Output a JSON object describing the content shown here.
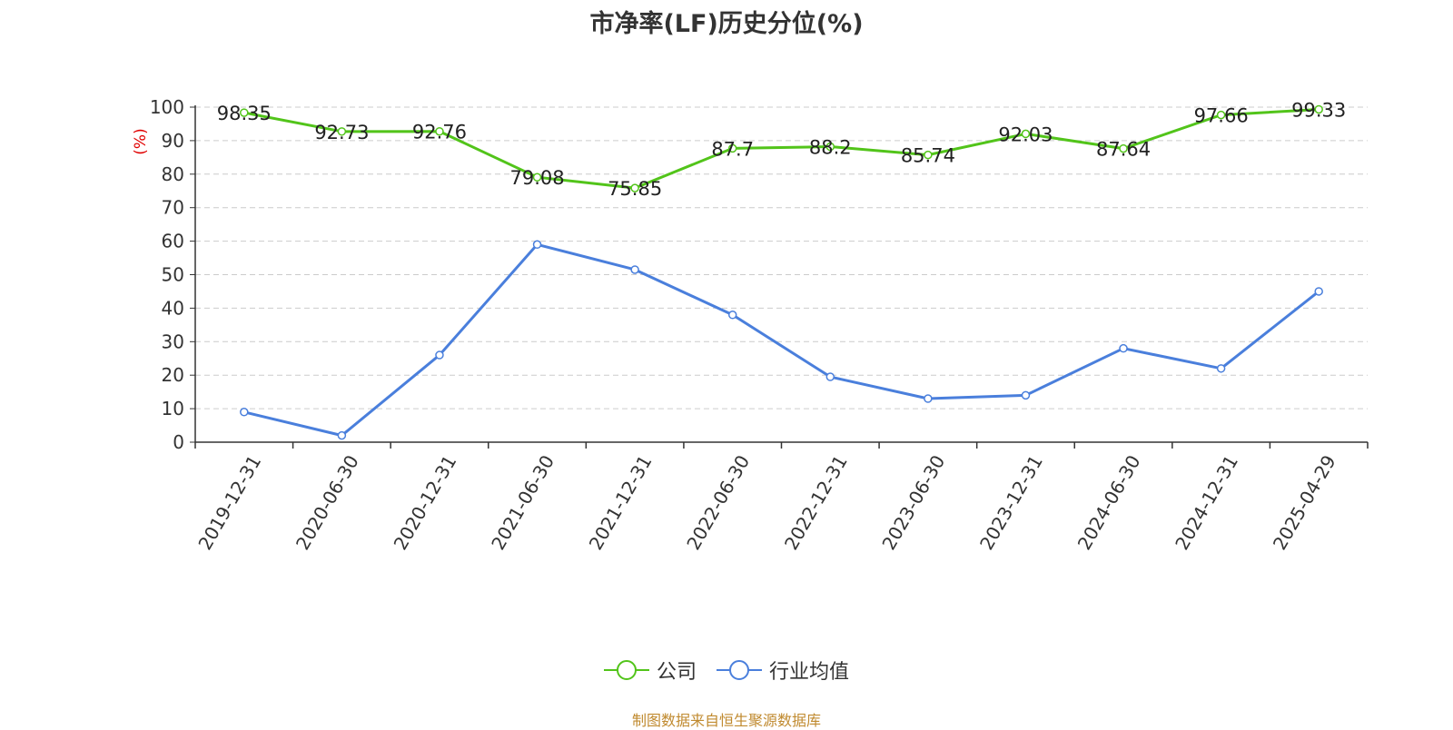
{
  "chart_data": {
    "type": "line",
    "title": "市净率(LF)历史分位(%)",
    "ylabel": "(%)",
    "xlabel": "",
    "ylim": [
      0,
      100
    ],
    "yticks": [
      0,
      10,
      20,
      30,
      40,
      50,
      60,
      70,
      80,
      90,
      100
    ],
    "grid": true,
    "legend_position": "bottom",
    "categories": [
      "2019-12-31",
      "2020-06-30",
      "2020-12-31",
      "2021-06-30",
      "2021-12-31",
      "2022-06-30",
      "2022-12-31",
      "2023-06-30",
      "2023-12-31",
      "2024-06-30",
      "2024-12-31",
      "2025-04-29"
    ],
    "series": [
      {
        "name": "公司",
        "color": "#52c41a",
        "values": [
          98.35,
          92.73,
          92.76,
          79.08,
          75.85,
          87.7,
          88.2,
          85.74,
          92.03,
          87.64,
          97.66,
          99.33
        ],
        "labels": [
          "98.35",
          "92.73",
          "92.76",
          "79.08",
          "75.85",
          "87.7",
          "88.2",
          "85.74",
          "92.03",
          "87.64",
          "97.66",
          "99.33"
        ]
      },
      {
        "name": "行业均值",
        "color": "#4a7fdc",
        "values": [
          9,
          2,
          26,
          59,
          51.5,
          38,
          19.5,
          13,
          14,
          28,
          22,
          45
        ]
      }
    ]
  },
  "source_note": "制图数据来自恒生聚源数据库"
}
